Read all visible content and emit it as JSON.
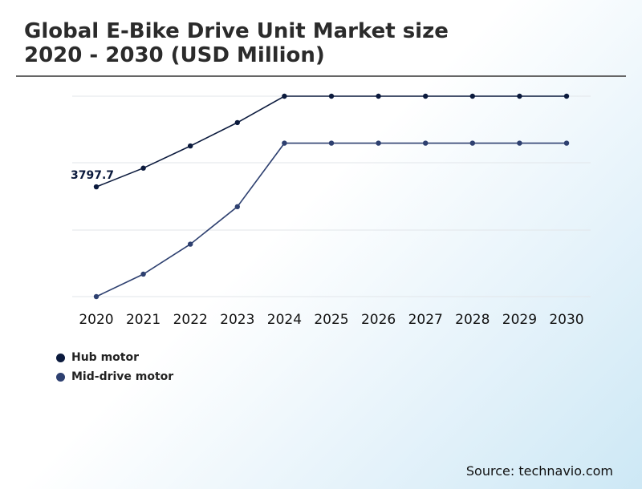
{
  "title_line1": "Global E-Bike Drive Unit Market size",
  "title_line2": "2020 - 2030 (USD Million)",
  "source": "Source: technavio.com",
  "colors": {
    "hub": "#0b1a3d",
    "mid": "#2e4070",
    "grid": "#e2e6ea",
    "axis_text": "#111111"
  },
  "chart_data": {
    "type": "line",
    "categories": [
      "2020",
      "2021",
      "2022",
      "2023",
      "2024",
      "2025",
      "2026",
      "2027",
      "2028",
      "2029",
      "2030"
    ],
    "series": [
      {
        "name": "Hub motor",
        "values": [
          3797.7,
          4172,
          4616,
          5084,
          5612,
          5612,
          5612,
          5612,
          5612,
          5612,
          5612
        ]
      },
      {
        "name": "Mid-drive motor",
        "values": [
          1600,
          2050,
          2650,
          3400,
          4672,
          4672,
          4672,
          4672,
          4672,
          4672,
          4672
        ]
      }
    ],
    "annotations": [
      {
        "series": "Hub motor",
        "category": "2020",
        "text": "3797.7"
      }
    ],
    "ylim": [
      1600,
      5612
    ],
    "grid": true,
    "legend": "bottom-left"
  }
}
